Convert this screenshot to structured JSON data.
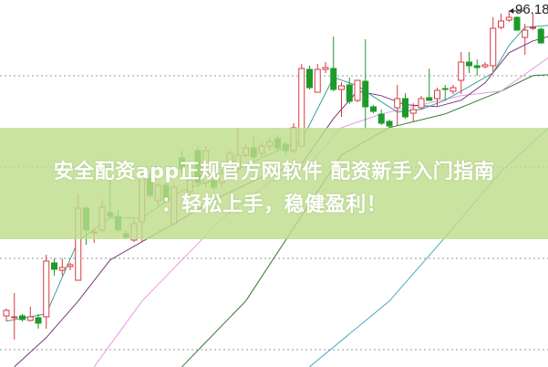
{
  "title_line1": "安全配资app正规官方网软件 配资新手入门指南",
  "title_line2": "：轻松上手，稳健盈利！",
  "chart_data": {
    "type": "candlestick",
    "high_marker_label": "96.18",
    "colors": {
      "up": "#d9383f",
      "down": "#1e9a2a",
      "ma5": "#3aa0a0",
      "ma10": "#7a3a78",
      "ma20": "#e69ae6",
      "ma30": "#2f7a2f",
      "ma60": "#4aa8c0"
    },
    "grid": "dotted horizontal",
    "candles": [
      [
        62.78,
        63.58,
        62.18,
        63.38
      ],
      [
        62.58,
        65.28,
        60.18,
        62.68
      ],
      [
        62.78,
        62.98,
        62.18,
        62.38
      ],
      [
        62.28,
        63.78,
        62.18,
        62.68
      ],
      [
        62.58,
        62.98,
        61.38,
        61.98
      ],
      [
        62.68,
        69.48,
        61.38,
        68.78
      ],
      [
        68.58,
        69.08,
        67.18,
        67.88
      ],
      [
        67.78,
        69.08,
        67.18,
        68.08
      ],
      [
        68.18,
        68.58,
        67.78,
        68.38
      ],
      [
        66.68,
        76.08,
        66.68,
        74.58
      ],
      [
        74.58,
        74.78,
        70.58,
        72.18
      ],
      [
        71.88,
        72.38,
        70.78,
        71.98
      ],
      [
        72.18,
        75.58,
        71.88,
        74.68
      ],
      [
        74.08,
        77.88,
        73.38,
        73.68
      ],
      [
        73.68,
        74.38,
        71.88,
        72.18
      ],
      [
        71.78,
        72.18,
        71.18,
        71.38
      ],
      [
        71.08,
        73.38,
        70.88,
        72.88
      ],
      [
        73.08,
        78.88,
        70.88,
        78.38
      ],
      [
        77.78,
        78.38,
        75.68,
        75.98
      ],
      [
        75.38,
        77.38,
        74.88,
        77.08
      ],
      [
        77.08,
        77.38,
        75.18,
        75.38
      ],
      [
        72.88,
        77.38,
        72.68,
        76.88
      ],
      [
        80.08,
        80.88,
        78.38,
        78.88
      ],
      [
        76.38,
        78.38,
        75.88,
        77.68
      ],
      [
        80.88,
        81.38,
        76.88,
        77.38
      ],
      [
        77.38,
        81.38,
        76.88,
        80.88
      ],
      [
        77.58,
        78.38,
        76.58,
        76.88
      ],
      [
        77.38,
        78.88,
        76.88,
        78.38
      ],
      [
        78.38,
        80.88,
        78.18,
        80.58
      ],
      [
        78.88,
        83.38,
        78.38,
        80.38
      ],
      [
        80.38,
        81.58,
        80.18,
        81.18
      ],
      [
        81.18,
        82.38,
        79.88,
        80.18
      ],
      [
        80.58,
        81.78,
        80.18,
        81.38
      ],
      [
        81.38,
        82.38,
        80.88,
        81.88
      ],
      [
        82.18,
        82.58,
        80.88,
        81.18
      ],
      [
        81.58,
        81.88,
        80.38,
        80.88
      ],
      [
        80.88,
        83.88,
        80.58,
        83.38
      ],
      [
        81.38,
        90.38,
        81.38,
        89.88
      ],
      [
        89.78,
        90.18,
        87.58,
        87.78
      ],
      [
        87.28,
        90.38,
        87.28,
        89.78
      ],
      [
        89.78,
        90.58,
        89.38,
        89.98
      ],
      [
        89.88,
        93.38,
        87.38,
        87.58
      ],
      [
        87.58,
        88.38,
        84.58,
        87.98
      ],
      [
        88.08,
        88.88,
        85.98,
        86.28
      ],
      [
        86.38,
        88.58,
        86.18,
        88.58
      ],
      [
        88.48,
        93.08,
        83.18,
        85.68
      ],
      [
        85.68,
        85.88,
        84.98,
        85.18
      ],
      [
        84.88,
        85.38,
        83.68,
        83.88
      ],
      [
        84.08,
        84.28,
        83.38,
        83.58
      ],
      [
        85.58,
        88.08,
        83.68,
        86.58
      ],
      [
        86.58,
        87.18,
        84.38,
        84.58
      ],
      [
        84.98,
        86.08,
        84.08,
        85.38
      ],
      [
        85.58,
        86.88,
        85.38,
        86.58
      ],
      [
        86.68,
        89.88,
        86.38,
        86.38
      ],
      [
        86.58,
        87.78,
        85.78,
        87.48
      ],
      [
        87.68,
        88.08,
        86.38,
        87.58
      ],
      [
        87.38,
        88.08,
        87.08,
        87.78
      ],
      [
        88.58,
        91.68,
        87.08,
        90.58
      ],
      [
        90.58,
        91.68,
        89.38,
        90.18
      ],
      [
        90.18,
        90.88,
        89.08,
        89.98
      ],
      [
        90.08,
        90.58,
        89.88,
        90.28
      ],
      [
        90.18,
        95.48,
        89.38,
        94.28
      ],
      [
        94.38,
        95.88,
        94.18,
        95.08
      ],
      [
        95.18,
        96.18,
        94.98,
        95.48
      ],
      [
        95.48,
        95.58,
        94.08,
        94.08
      ],
      [
        93.28,
        94.78,
        91.38,
        94.08
      ],
      [
        94.28,
        95.88,
        94.08,
        94.38
      ],
      [
        94.18,
        94.38,
        92.58,
        92.68
      ]
    ],
    "moving_averages": {
      "ma5": [
        [
          0,
          62.2
        ],
        [
          5,
          63
        ],
        [
          9,
          71
        ],
        [
          13,
          73.5
        ],
        [
          17,
          73.5
        ],
        [
          22,
          76.5
        ],
        [
          27,
          78
        ],
        [
          33,
          80.5
        ],
        [
          37,
          82
        ],
        [
          41,
          88.9
        ],
        [
          44,
          88
        ],
        [
          46,
          86.8
        ],
        [
          49,
          85.1
        ],
        [
          52,
          85.4
        ],
        [
          55,
          86.4
        ],
        [
          58,
          87.9
        ],
        [
          61,
          89.4
        ],
        [
          63,
          92.4
        ],
        [
          65,
          94.4
        ],
        [
          68,
          94.6
        ]
      ],
      "ma10": [
        [
          1,
          57.2
        ],
        [
          5,
          60.4
        ],
        [
          9,
          64.4
        ],
        [
          13,
          68.9
        ],
        [
          17,
          70.9
        ],
        [
          22,
          73.4
        ],
        [
          27,
          75.9
        ],
        [
          33,
          78.4
        ],
        [
          37,
          79.4
        ],
        [
          41,
          84.4
        ],
        [
          44,
          87.4
        ],
        [
          47,
          86.9
        ],
        [
          50,
          85.9
        ],
        [
          54,
          85.7
        ],
        [
          57,
          86.4
        ],
        [
          60,
          88.3
        ],
        [
          63,
          91.6
        ],
        [
          66,
          92.9
        ],
        [
          68,
          93.4
        ]
      ],
      "ma20": [
        [
          11,
          57.2
        ],
        [
          17,
          64.4
        ],
        [
          22,
          68.9
        ],
        [
          27,
          73.4
        ],
        [
          33,
          77.4
        ],
        [
          38,
          79.4
        ],
        [
          42,
          83.4
        ],
        [
          47,
          84.9
        ],
        [
          52,
          85.9
        ],
        [
          57,
          86.9
        ],
        [
          62,
          87.4
        ],
        [
          68,
          91.1
        ]
      ],
      "ma30": [
        [
          22,
          57.2
        ],
        [
          30,
          64.4
        ],
        [
          36,
          72.4
        ],
        [
          42,
          80.4
        ],
        [
          48,
          83.4
        ],
        [
          55,
          84.9
        ],
        [
          62,
          87.4
        ],
        [
          66,
          89.1
        ],
        [
          68,
          89.2
        ]
      ],
      "ma60": [
        [
          38,
          57.2
        ],
        [
          48,
          64.4
        ],
        [
          55,
          71.4
        ],
        [
          62,
          78.6
        ],
        [
          68,
          83.4
        ]
      ]
    }
  }
}
